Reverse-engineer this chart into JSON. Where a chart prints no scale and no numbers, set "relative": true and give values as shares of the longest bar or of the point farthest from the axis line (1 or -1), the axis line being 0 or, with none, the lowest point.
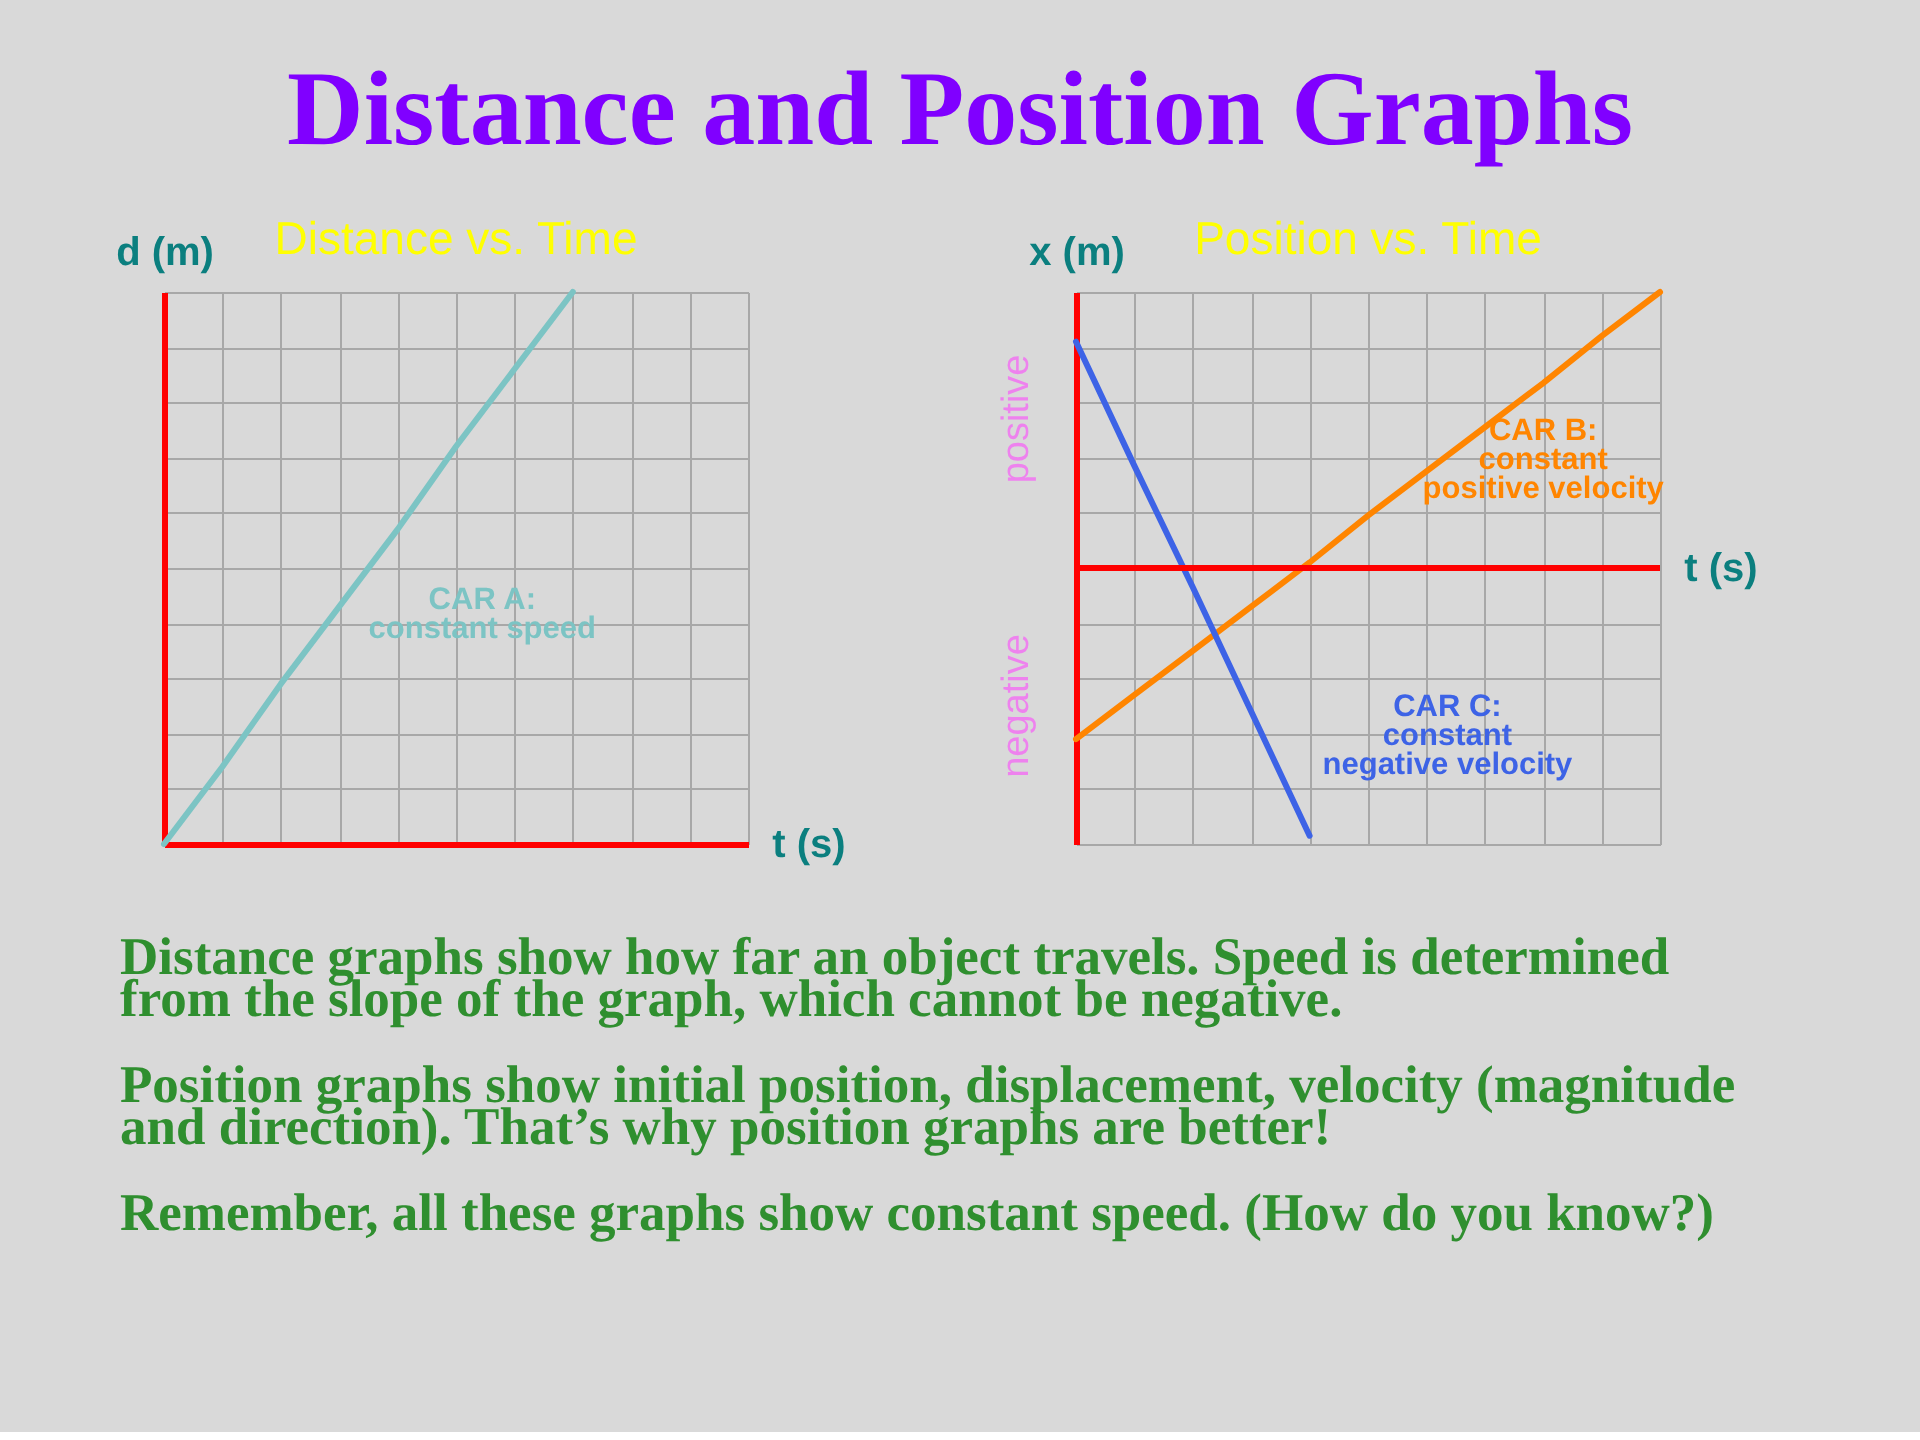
{
  "chart_data": [
    {
      "type": "other",
      "title": "Distance and Position Graphs"
    },
    {
      "type": "line",
      "title": "Distance vs. Time",
      "xlabel": "t (s)",
      "ylabel": "d (m)",
      "categories": [
        null,
        null,
        null,
        null,
        null,
        null,
        null,
        null,
        null,
        null,
        null
      ],
      "series": [
        {
          "name": "CAR A:\nconstant speed",
          "color": "#7cc4c4",
          "values": [
            0,
            0.14,
            0.29,
            0.43,
            0.57,
            0.72,
            0.86,
            1,
            null,
            null,
            null
          ]
        }
      ],
      "relative": true,
      "grid": true
    },
    {
      "type": "line",
      "title": "Position vs. Time",
      "xlabel": "t (s)",
      "ylabel": "x (m)",
      "categories": [
        null,
        null,
        null,
        null,
        null,
        null,
        null,
        null,
        null,
        null,
        null
      ],
      "series": [
        {
          "name": "CAR B:\nconstant\npositive velocity",
          "color": "#ff8500",
          "values": [
            -0.62,
            -0.46,
            -0.3,
            -0.14,
            0.02,
            0.19,
            0.35,
            0.51,
            0.67,
            0.84,
            1
          ]
        },
        {
          "name": "CAR C:\nconstant\nnegative velocity",
          "color": "#3d63e6",
          "values": [
            0.82,
            0.37,
            -0.07,
            -0.52,
            -0.97,
            null,
            null,
            null,
            null,
            null,
            null
          ]
        }
      ],
      "relative": true,
      "grid": true,
      "ref_lines": [
        {
          "axis": "y",
          "value": 0,
          "color": "#ff0000"
        }
      ],
      "annotations": [
        "positive",
        "negative"
      ]
    },
    {
      "type": "other",
      "annotations": [
        "Distance graphs show how far an object travels. Speed is determined\nfrom the slope of the graph, which cannot be negative.",
        "Position graphs show initial position, displacement, velocity (magnitude\nand direction). That’s why position graphs are better!",
        "Remember, all these graphs show constant speed. (How do you know?)"
      ]
    }
  ]
}
